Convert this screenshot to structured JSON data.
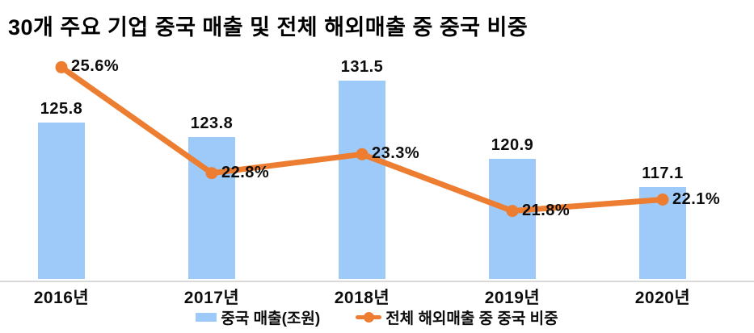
{
  "title": "30개 주요 기업 중국 매출 및 전체 해외매출 중 중국 비중",
  "colors": {
    "bar": "#9ECAF9",
    "line": "#ED7D31",
    "axis_line": "#D9D9D9",
    "text": "#000000",
    "background": "#FFFFFF"
  },
  "legend": [
    {
      "label": "중국 매출(조원)",
      "marker": "blue-bar-swatch"
    },
    {
      "label": "전체 해외매출 중 중국 비중",
      "marker": "orange-line-marker"
    }
  ],
  "chart_data": {
    "type": "bar",
    "subtype": "combo bar+line, dual axis",
    "title": "30개 주요 기업 중국 매출 및 전체 해외매출 중 중국 비중",
    "categories": [
      "2016년",
      "2017년",
      "2018년",
      "2019년",
      "2020년"
    ],
    "series": [
      {
        "name": "중국 매출(조원)",
        "type": "bar",
        "axis": "primary",
        "values": [
          125.8,
          123.8,
          131.5,
          120.9,
          117.1
        ],
        "data_labels": [
          "125.8",
          "123.8",
          "131.5",
          "120.9",
          "117.1"
        ]
      },
      {
        "name": "전체 해외매출 중 중국 비중",
        "type": "line",
        "axis": "secondary",
        "values": [
          25.6,
          22.8,
          23.3,
          21.8,
          22.1
        ],
        "data_labels": [
          "25.6%",
          "22.8%",
          "23.3%",
          "21.8%",
          "22.1%"
        ]
      }
    ],
    "xlabel": "",
    "ylabel": "",
    "primary_ylim": [
      104.7,
      135.8
    ],
    "secondary_ylim": [
      20.0,
      26.1
    ],
    "grid": false,
    "axes_ticks_visible": false,
    "legend_position": "bottom"
  }
}
